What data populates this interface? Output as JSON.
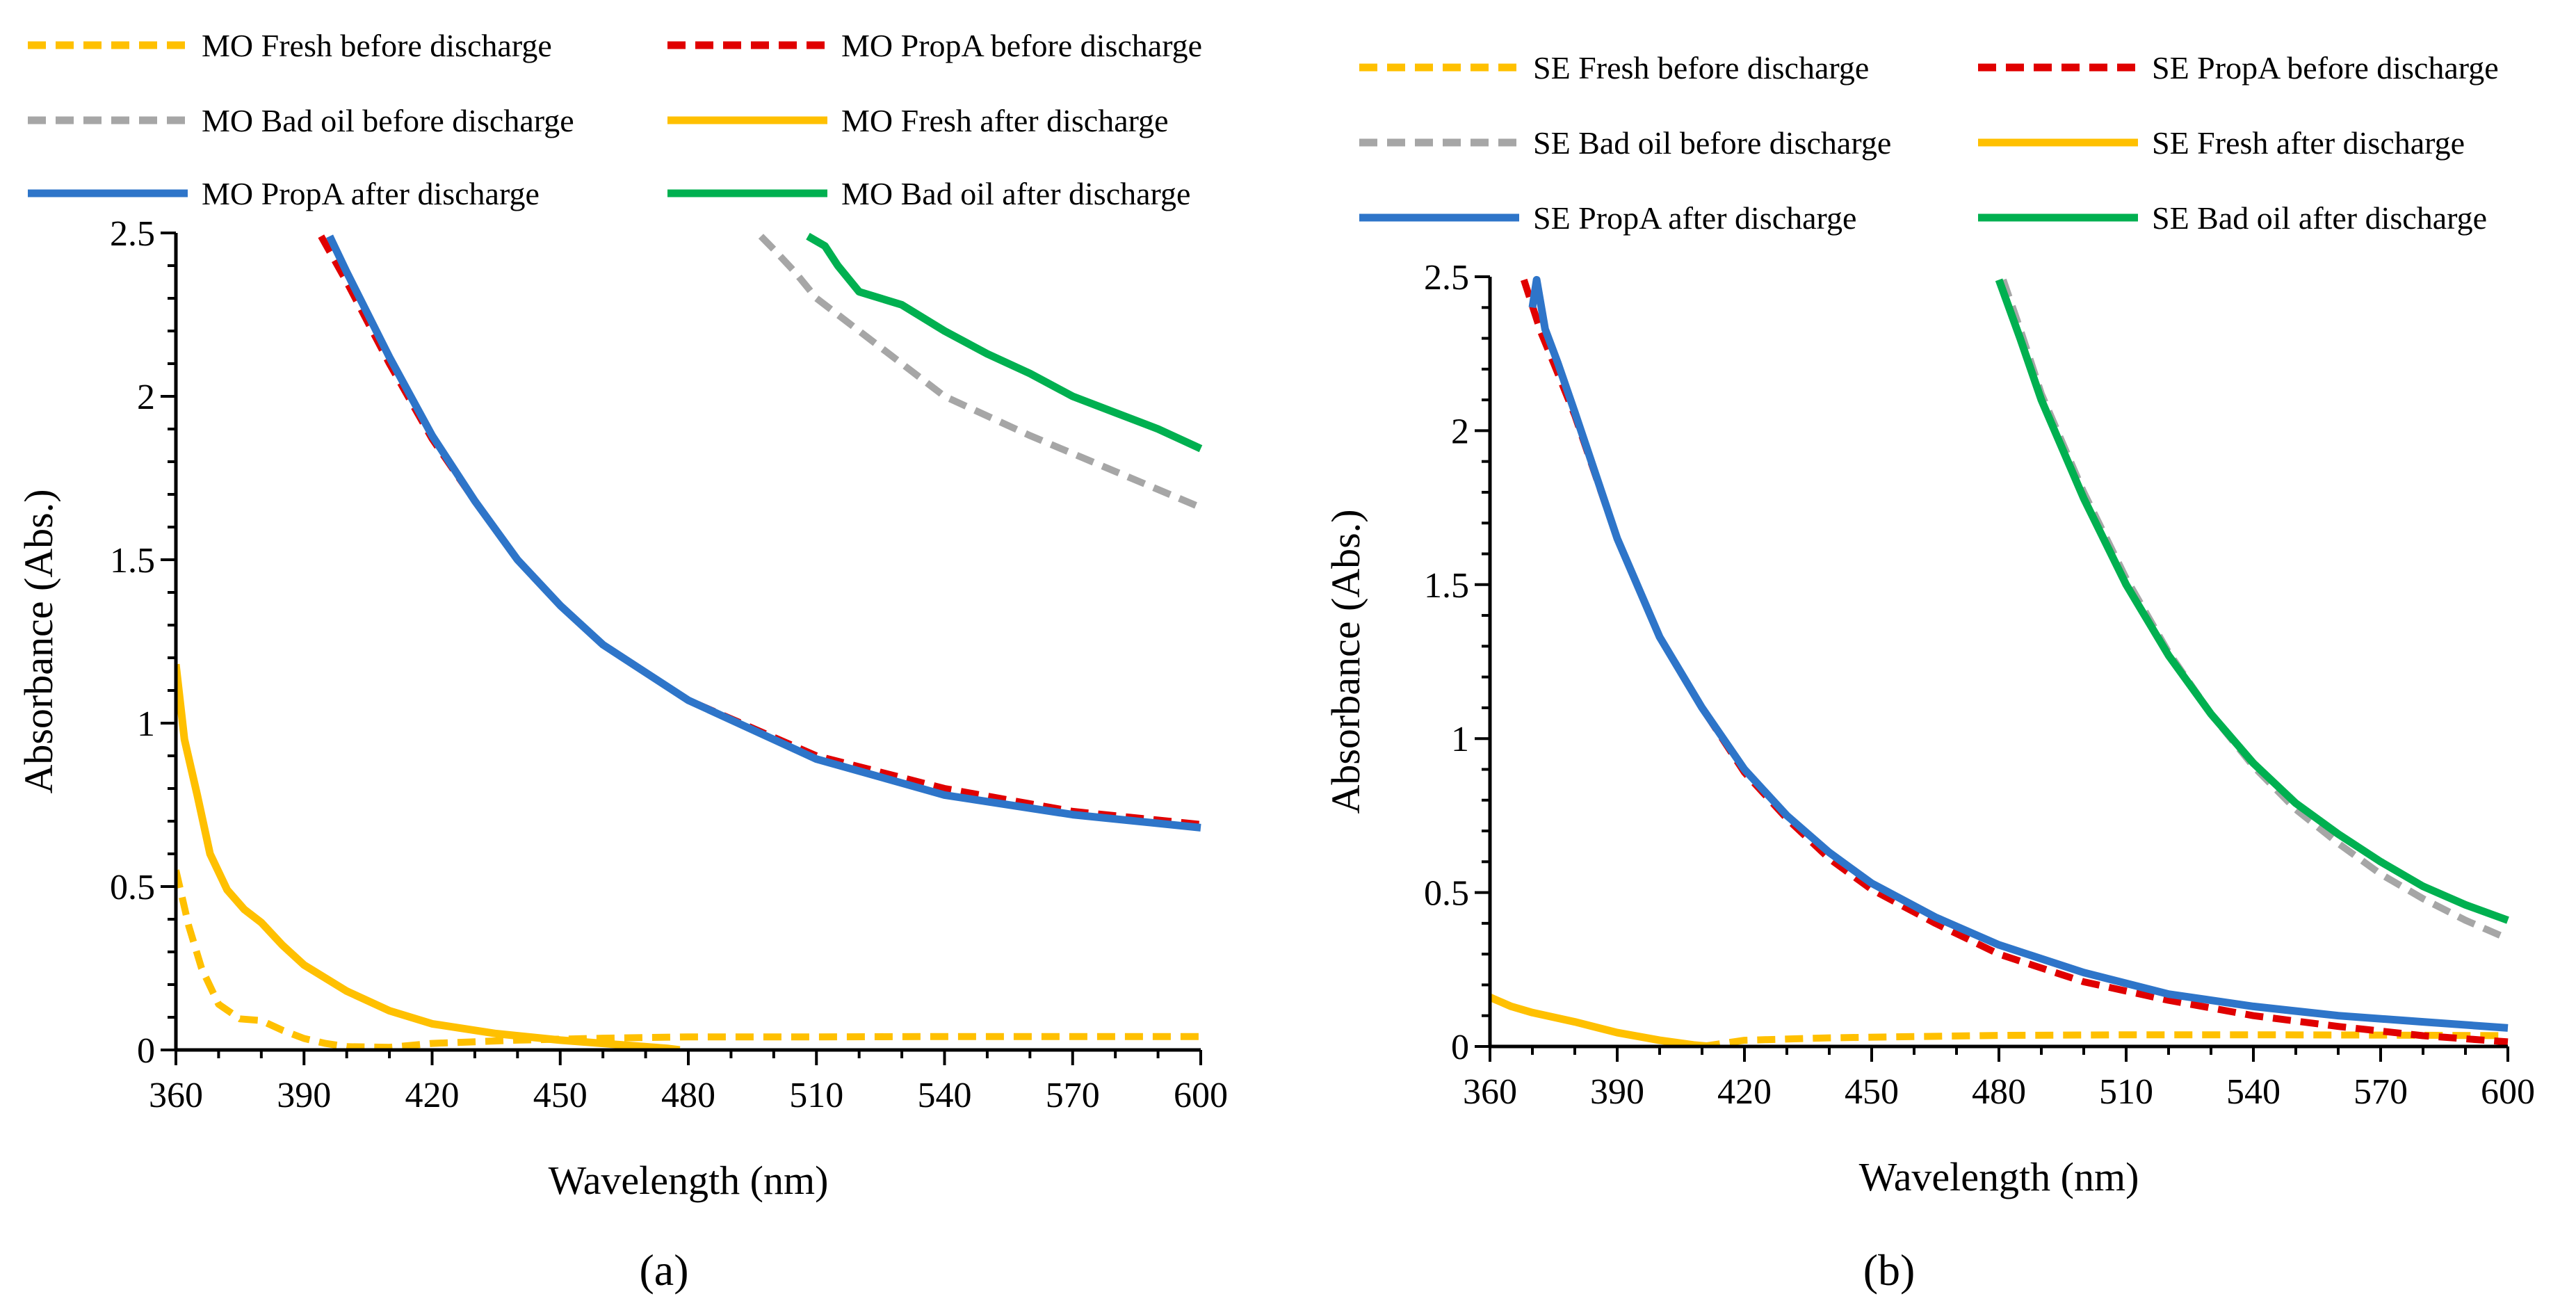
{
  "figure": {
    "panel_a_label": "(a)",
    "panel_b_label": "(b)"
  },
  "chart_data": [
    {
      "type": "line",
      "panel": "a",
      "title": "",
      "xlabel": "Wavelength (nm)",
      "ylabel": "Absorbance (Abs.)",
      "xlim": [
        360,
        600
      ],
      "ylim": [
        0,
        2.5
      ],
      "xticks": [
        360,
        390,
        420,
        450,
        480,
        510,
        540,
        570,
        600
      ],
      "yticks": [
        0,
        0.5,
        1,
        1.5,
        2,
        2.5
      ],
      "xtick_labels": [
        "360",
        "390",
        "420",
        "450",
        "480",
        "510",
        "540",
        "570",
        "600"
      ],
      "ytick_labels": [
        "0",
        "0.5",
        "1",
        "1.5",
        "2",
        "2.5"
      ],
      "grid": false,
      "legend_position": "top",
      "series": [
        {
          "name": "MO Fresh before discharge",
          "color": "#FFC000",
          "dashed": true,
          "x": [
            360,
            363,
            366,
            370,
            375,
            380,
            385,
            390,
            395,
            400,
            410,
            420,
            440,
            460,
            480,
            510,
            540,
            570,
            600
          ],
          "y": [
            0.55,
            0.38,
            0.25,
            0.14,
            0.095,
            0.09,
            0.06,
            0.035,
            0.02,
            0.01,
            0.008,
            0.02,
            0.03,
            0.036,
            0.04,
            0.04,
            0.041,
            0.041,
            0.041
          ]
        },
        {
          "name": "MO PropA before discharge",
          "color": "#E00000",
          "dashed": true,
          "x": [
            394,
            400,
            410,
            420,
            430,
            440,
            450,
            460,
            480,
            510,
            540,
            570,
            600
          ],
          "y": [
            2.49,
            2.35,
            2.1,
            1.87,
            1.68,
            1.5,
            1.36,
            1.24,
            1.07,
            0.9,
            0.8,
            0.73,
            0.69
          ]
        },
        {
          "name": "MO Bad oil before discharge",
          "color": "#A6A6A6",
          "dashed": true,
          "x": [
            497,
            500,
            505,
            510,
            520,
            530,
            540,
            560,
            580,
            600
          ],
          "y": [
            2.49,
            2.45,
            2.38,
            2.3,
            2.2,
            2.1,
            2.0,
            1.88,
            1.77,
            1.66
          ]
        },
        {
          "name": "MO Fresh after discharge",
          "color": "#FFC000",
          "dashed": false,
          "x": [
            360,
            362,
            365,
            368,
            372,
            376,
            380,
            385,
            390,
            400,
            410,
            420,
            435,
            450,
            465,
            475,
            478
          ],
          "y": [
            1.18,
            0.95,
            0.78,
            0.6,
            0.49,
            0.43,
            0.39,
            0.32,
            0.26,
            0.18,
            0.12,
            0.08,
            0.05,
            0.03,
            0.015,
            0.005,
            0.0
          ]
        },
        {
          "name": "MO PropA after discharge",
          "color": "#2E75C9",
          "dashed": false,
          "x": [
            396,
            400,
            410,
            420,
            430,
            440,
            450,
            460,
            480,
            510,
            540,
            570,
            600
          ],
          "y": [
            2.49,
            2.38,
            2.12,
            1.88,
            1.68,
            1.5,
            1.36,
            1.24,
            1.07,
            0.89,
            0.78,
            0.72,
            0.68
          ]
        },
        {
          "name": "MO Bad oil after discharge",
          "color": "#00B050",
          "dashed": false,
          "x": [
            508,
            512,
            515,
            520,
            530,
            540,
            550,
            560,
            570,
            580,
            590,
            600
          ],
          "y": [
            2.49,
            2.46,
            2.4,
            2.32,
            2.28,
            2.2,
            2.13,
            2.07,
            2.0,
            1.95,
            1.9,
            1.84
          ]
        }
      ]
    },
    {
      "type": "line",
      "panel": "b",
      "title": "",
      "xlabel": "Wavelength (nm)",
      "ylabel": "Absorbance (Abs.)",
      "xlim": [
        360,
        600
      ],
      "ylim": [
        0,
        2.5
      ],
      "xticks": [
        360,
        390,
        420,
        450,
        480,
        510,
        540,
        570,
        600
      ],
      "yticks": [
        0,
        0.5,
        1,
        1.5,
        2,
        2.5
      ],
      "xtick_labels": [
        "360",
        "390",
        "420",
        "450",
        "480",
        "510",
        "540",
        "570",
        "600"
      ],
      "ytick_labels": [
        "0",
        "0.5",
        "1",
        "1.5",
        "2",
        "2.5"
      ],
      "grid": false,
      "legend_position": "top",
      "series": [
        {
          "name": "SE Fresh before discharge",
          "color": "#FFC000",
          "dashed": true,
          "x": [
            410,
            420,
            440,
            460,
            480,
            510,
            540,
            570,
            600
          ],
          "y": [
            0.0,
            0.02,
            0.028,
            0.032,
            0.036,
            0.038,
            0.038,
            0.037,
            0.035
          ]
        },
        {
          "name": "SE PropA before discharge",
          "color": "#E00000",
          "dashed": true,
          "x": [
            368,
            372,
            375,
            380,
            390,
            400,
            410,
            420,
            430,
            440,
            450,
            465,
            480,
            500,
            520,
            540,
            560,
            580,
            600
          ],
          "y": [
            2.49,
            2.32,
            2.22,
            2.05,
            1.65,
            1.33,
            1.1,
            0.89,
            0.74,
            0.61,
            0.51,
            0.4,
            0.3,
            0.21,
            0.15,
            0.1,
            0.065,
            0.035,
            0.015
          ]
        },
        {
          "name": "SE Bad oil before discharge",
          "color": "#A6A6A6",
          "dashed": true,
          "x": [
            481,
            485,
            490,
            500,
            510,
            520,
            530,
            540,
            550,
            560,
            570,
            580,
            590,
            600
          ],
          "y": [
            2.49,
            2.33,
            2.12,
            1.8,
            1.52,
            1.28,
            1.08,
            0.91,
            0.77,
            0.66,
            0.56,
            0.48,
            0.41,
            0.35
          ]
        },
        {
          "name": "SE Fresh after discharge",
          "color": "#FFC000",
          "dashed": false,
          "x": [
            360,
            365,
            370,
            380,
            390,
            400,
            408,
            412
          ],
          "y": [
            0.16,
            0.13,
            0.11,
            0.08,
            0.045,
            0.02,
            0.005,
            0.0
          ]
        },
        {
          "name": "SE PropA after discharge",
          "color": "#2E75C9",
          "dashed": false,
          "x": [
            370,
            371,
            373,
            376,
            380,
            390,
            400,
            410,
            420,
            430,
            440,
            450,
            465,
            480,
            500,
            520,
            540,
            560,
            580,
            600
          ],
          "y": [
            2.4,
            2.49,
            2.33,
            2.22,
            2.06,
            1.65,
            1.33,
            1.1,
            0.9,
            0.75,
            0.63,
            0.53,
            0.42,
            0.33,
            0.24,
            0.17,
            0.13,
            0.1,
            0.08,
            0.06
          ]
        },
        {
          "name": "SE Bad oil after discharge",
          "color": "#00B050",
          "dashed": false,
          "x": [
            480,
            485,
            490,
            500,
            510,
            520,
            530,
            540,
            550,
            560,
            570,
            580,
            590,
            600
          ],
          "y": [
            2.49,
            2.3,
            2.1,
            1.78,
            1.5,
            1.27,
            1.08,
            0.92,
            0.79,
            0.69,
            0.6,
            0.52,
            0.46,
            0.41
          ]
        }
      ]
    }
  ]
}
